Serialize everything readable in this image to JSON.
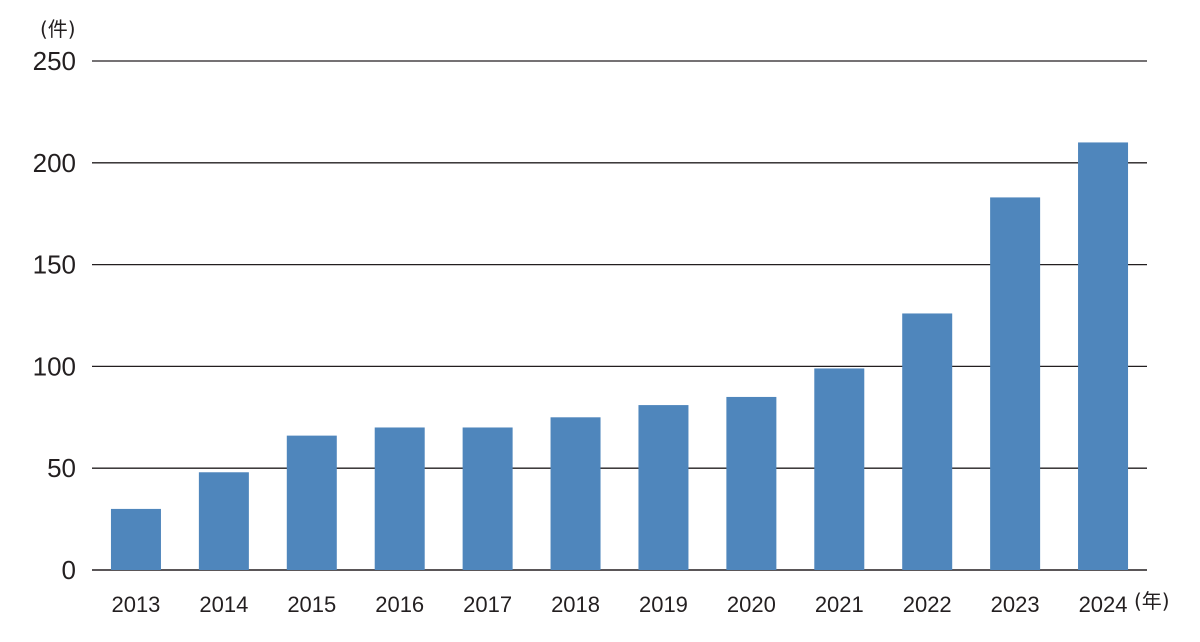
{
  "chart_data": {
    "type": "bar",
    "categories": [
      "2013",
      "2014",
      "2015",
      "2016",
      "2017",
      "2018",
      "2019",
      "2020",
      "2021",
      "2022",
      "2023",
      "2024"
    ],
    "values": [
      30,
      48,
      66,
      70,
      70,
      75,
      81,
      85,
      99,
      126,
      183,
      210
    ],
    "ylim": [
      0,
      250
    ],
    "yticks": [
      0,
      50,
      100,
      150,
      200,
      250
    ],
    "y_unit": "(件)",
    "x_unit": "(年)",
    "grid": true,
    "bar_color": "#4f86bc",
    "line_color": "#231f20"
  }
}
